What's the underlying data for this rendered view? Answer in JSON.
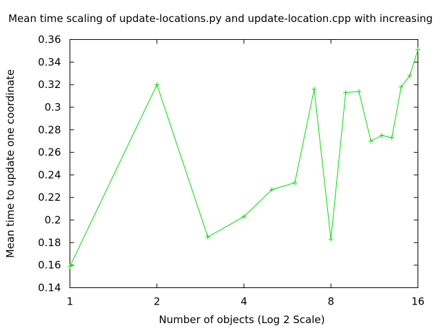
{
  "chart_data": {
    "type": "line",
    "title": "Mean time scaling of update-locations.py and update-location.cpp with increasing",
    "xlabel": "Number of objects (Log 2 Scale)",
    "ylabel": "Mean time to update one coordinate",
    "x_scale": "log2",
    "xlim": [
      1,
      16
    ],
    "ylim": [
      0.14,
      0.36
    ],
    "x_ticks": [
      "1",
      "2",
      "4",
      "8",
      "16"
    ],
    "y_ticks": [
      "0.14",
      "0.16",
      "0.18",
      "0.2",
      "0.22",
      "0.24",
      "0.26",
      "0.28",
      "0.3",
      "0.32",
      "0.34",
      "0.36"
    ],
    "grid": false,
    "legend": "none",
    "series": [
      {
        "color": "#00dd00",
        "marker": "plus",
        "x": [
          1,
          2,
          3,
          4,
          5,
          6,
          7,
          8,
          9,
          10,
          11,
          12,
          13,
          14,
          15,
          16
        ],
        "y": [
          0.159,
          0.32,
          0.185,
          0.203,
          0.227,
          0.233,
          0.316,
          0.183,
          0.313,
          0.314,
          0.27,
          0.275,
          0.273,
          0.318,
          0.328,
          0.351
        ]
      }
    ]
  }
}
